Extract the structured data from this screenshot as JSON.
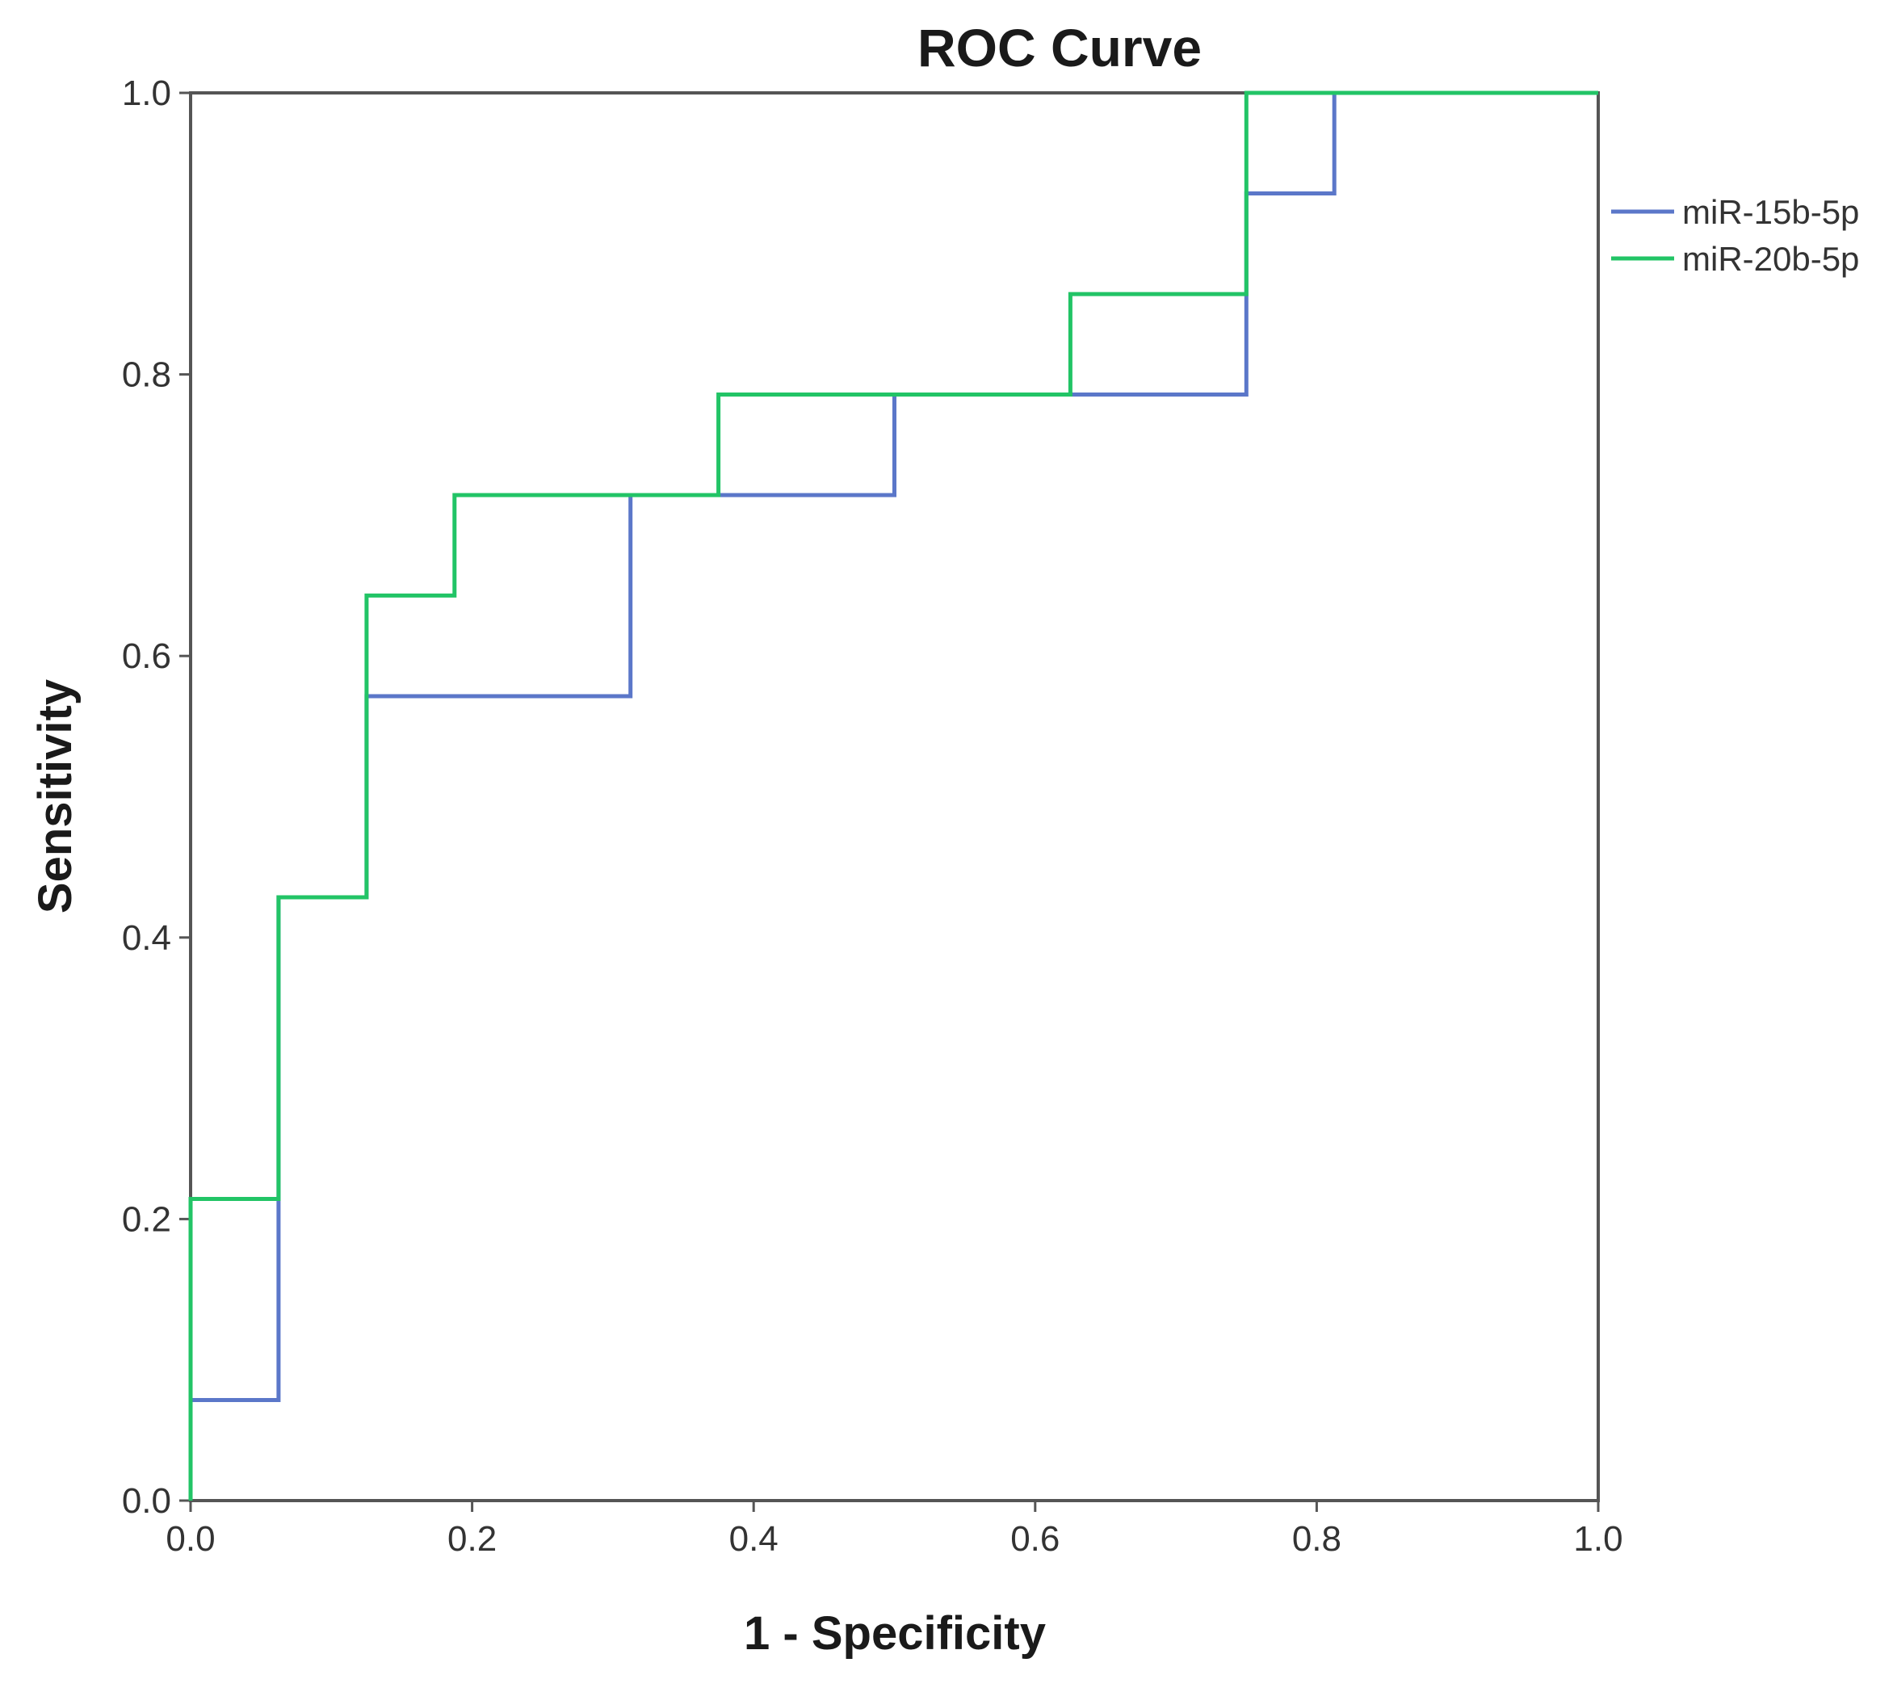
{
  "chart_data": {
    "type": "line",
    "title": "ROC Curve",
    "xlabel": "1 - Specificity",
    "ylabel": "Sensitivity",
    "xlim": [
      0,
      1
    ],
    "ylim": [
      0,
      1
    ],
    "xticks": [
      "0.0",
      "0.2",
      "0.4",
      "0.6",
      "0.8",
      "1.0"
    ],
    "yticks": [
      "0.0",
      "0.2",
      "0.4",
      "0.6",
      "0.8",
      "1.0"
    ],
    "grid": false,
    "legend_position": "right",
    "step": true,
    "series": [
      {
        "name": "miR-15b-5p",
        "color": "#5b77c9",
        "x": [
          0,
          0,
          0.0625,
          0.0625,
          0.125,
          0.125,
          0.3125,
          0.3125,
          0.5,
          0.5,
          0.75,
          0.75,
          0.8125,
          0.8125,
          1
        ],
        "y": [
          0,
          0.0714,
          0.0714,
          0.4286,
          0.4286,
          0.5714,
          0.5714,
          0.7143,
          0.7143,
          0.7857,
          0.7857,
          0.9286,
          0.9286,
          1,
          1
        ]
      },
      {
        "name": "miR-20b-5p",
        "color": "#22c466",
        "x": [
          0,
          0,
          0.0625,
          0.0625,
          0.125,
          0.125,
          0.1875,
          0.1875,
          0.375,
          0.375,
          0.625,
          0.625,
          0.75,
          0.75,
          1
        ],
        "y": [
          0,
          0.2143,
          0.2143,
          0.4286,
          0.4286,
          0.6429,
          0.6429,
          0.7143,
          0.7143,
          0.7857,
          0.7857,
          0.8571,
          0.8571,
          1,
          1
        ]
      }
    ]
  }
}
